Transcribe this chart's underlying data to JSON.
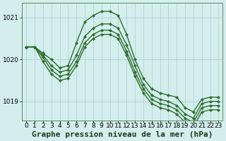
{
  "background_color": "#d4eeed",
  "line_color": "#2d6e2d",
  "grid_color": "#a8cece",
  "title": "Graphe pression niveau de la mer (hPa)",
  "ylim": [
    1018.55,
    1021.35
  ],
  "xlim": [
    -0.5,
    23.5
  ],
  "yticks": [
    1019,
    1020,
    1021
  ],
  "xticks": [
    0,
    1,
    2,
    3,
    4,
    5,
    6,
    7,
    8,
    9,
    10,
    11,
    12,
    13,
    14,
    15,
    16,
    17,
    18,
    19,
    20,
    21,
    22,
    23
  ],
  "series": [
    [
      1020.3,
      1020.3,
      1020.15,
      1020.0,
      1019.8,
      1019.85,
      1020.4,
      1020.9,
      1021.05,
      1021.15,
      1021.15,
      1021.05,
      1020.6,
      1020.0,
      1019.55,
      1019.3,
      1019.2,
      1019.15,
      1019.1,
      1018.85,
      1018.75,
      1019.05,
      1019.1,
      1019.1
    ],
    [
      1020.3,
      1020.3,
      1020.1,
      1019.85,
      1019.7,
      1019.75,
      1020.1,
      1020.55,
      1020.75,
      1020.85,
      1020.85,
      1020.75,
      1020.35,
      1019.85,
      1019.4,
      1019.15,
      1019.05,
      1019.0,
      1018.9,
      1018.7,
      1018.6,
      1018.95,
      1019.0,
      1019.0
    ],
    [
      1020.3,
      1020.3,
      1020.05,
      1019.75,
      1019.6,
      1019.65,
      1019.95,
      1020.4,
      1020.6,
      1020.7,
      1020.7,
      1020.6,
      1020.2,
      1019.7,
      1019.3,
      1019.05,
      1018.95,
      1018.9,
      1018.8,
      1018.6,
      1018.5,
      1018.85,
      1018.9,
      1018.9
    ],
    [
      1020.3,
      1020.3,
      1019.95,
      1019.65,
      1019.5,
      1019.55,
      1019.85,
      1020.3,
      1020.5,
      1020.6,
      1020.6,
      1020.5,
      1020.1,
      1019.6,
      1019.2,
      1018.95,
      1018.85,
      1018.8,
      1018.7,
      1018.5,
      1018.4,
      1018.75,
      1018.8,
      1018.8
    ]
  ],
  "title_fontsize": 8,
  "tick_fontsize": 6.5,
  "linewidth": 1.0,
  "marker": "D",
  "markersize": 2.0
}
